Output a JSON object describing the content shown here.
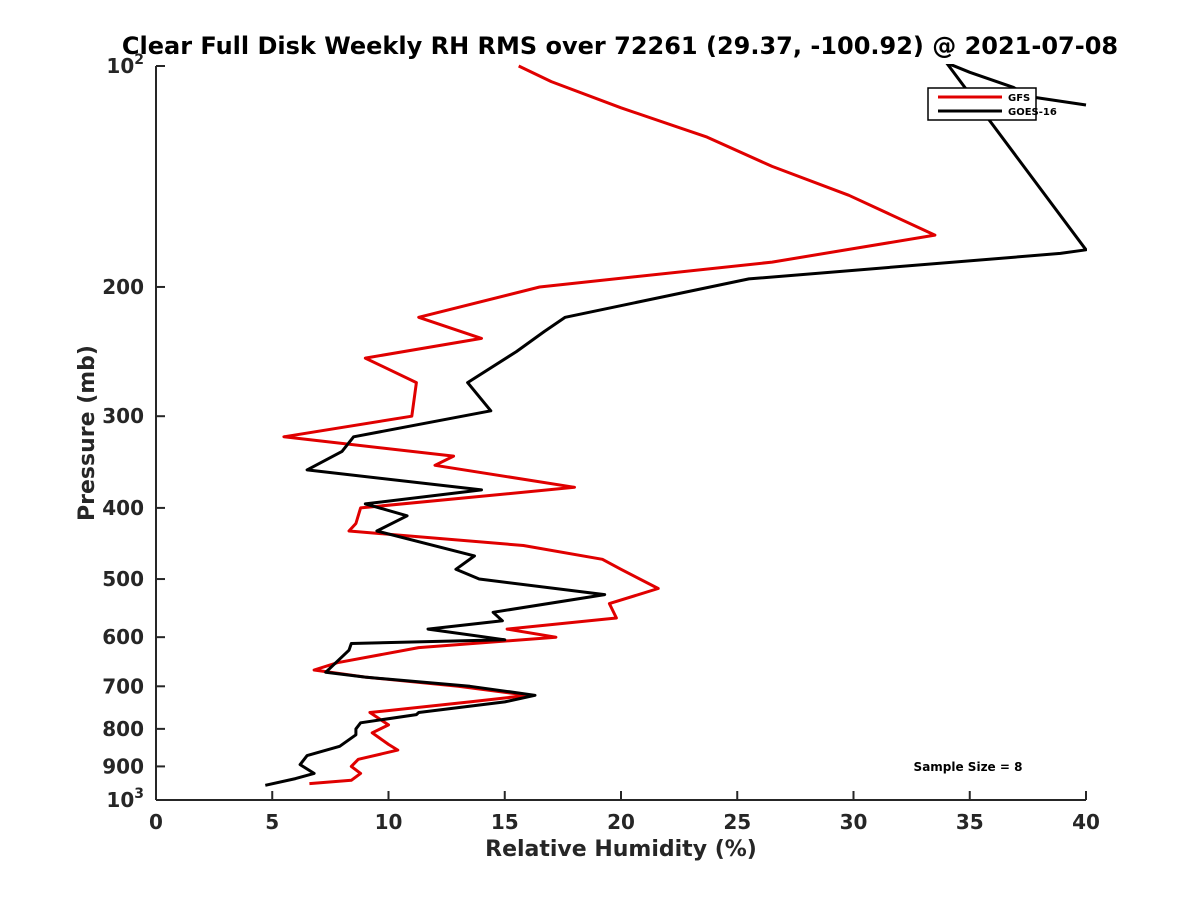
{
  "chart_data": {
    "type": "line",
    "title": "Clear Full Disk Weekly RH RMS over 72261 (29.37, -100.92) @ 2021-07-08",
    "xlabel": "Relative Humidity (%)",
    "ylabel": "Pressure (mb)",
    "xlim": [
      0,
      40
    ],
    "ylim": [
      100,
      1000
    ],
    "yscale": "log",
    "y_reversed": true,
    "x_ticks": [
      "0",
      "5",
      "10",
      "15",
      "20",
      "25",
      "30",
      "35",
      "40"
    ],
    "y_ticks": [
      {
        "value": 100,
        "base": "10",
        "exp": "2"
      },
      {
        "value": 200,
        "label": "200"
      },
      {
        "value": 300,
        "label": "300"
      },
      {
        "value": 400,
        "label": "400"
      },
      {
        "value": 500,
        "label": "500"
      },
      {
        "value": 600,
        "label": "600"
      },
      {
        "value": 700,
        "label": "700"
      },
      {
        "value": 800,
        "label": "800"
      },
      {
        "value": 900,
        "label": "900"
      },
      {
        "value": 1000,
        "base": "10",
        "exp": "3"
      }
    ],
    "legend_position": "top-right",
    "annotation": "Sample Size = 8",
    "series": [
      {
        "name": "GFS",
        "color": "#e00000",
        "points": [
          [
            15.6,
            100
          ],
          [
            17.0,
            105
          ],
          [
            20.0,
            114
          ],
          [
            23.7,
            125
          ],
          [
            26.5,
            137
          ],
          [
            29.8,
            150
          ],
          [
            33.5,
            170
          ],
          [
            26.5,
            185
          ],
          [
            16.5,
            200
          ],
          [
            11.3,
            220
          ],
          [
            14.0,
            235
          ],
          [
            9.0,
            250
          ],
          [
            11.2,
            270
          ],
          [
            11.0,
            300
          ],
          [
            5.5,
            320
          ],
          [
            12.8,
            340
          ],
          [
            12.0,
            350
          ],
          [
            18.0,
            375
          ],
          [
            8.8,
            400
          ],
          [
            8.6,
            420
          ],
          [
            8.3,
            430
          ],
          [
            15.8,
            450
          ],
          [
            19.2,
            470
          ],
          [
            20.0,
            485
          ],
          [
            21.6,
            515
          ],
          [
            19.5,
            540
          ],
          [
            19.8,
            565
          ],
          [
            15.1,
            585
          ],
          [
            17.2,
            600
          ],
          [
            11.3,
            620
          ],
          [
            7.8,
            650
          ],
          [
            6.8,
            665
          ],
          [
            9.0,
            680
          ],
          [
            13.0,
            700
          ],
          [
            16.0,
            720
          ],
          [
            13.5,
            735
          ],
          [
            9.2,
            760
          ],
          [
            10.0,
            790
          ],
          [
            9.3,
            810
          ],
          [
            10.0,
            840
          ],
          [
            10.4,
            855
          ],
          [
            8.7,
            880
          ],
          [
            8.4,
            900
          ],
          [
            8.8,
            920
          ],
          [
            8.4,
            940
          ],
          [
            6.6,
            950
          ]
        ]
      },
      {
        "name": "GOES-16",
        "color": "#000000",
        "points": [
          [
            40.0,
            113
          ],
          [
            37.5,
            110
          ],
          [
            36.9,
            107
          ],
          [
            35.0,
            102
          ],
          [
            34.0,
            99
          ],
          [
            40.0,
            178
          ],
          [
            38.9,
            180
          ],
          [
            25.5,
            195
          ],
          [
            17.6,
            220
          ],
          [
            16.7,
            230
          ],
          [
            15.5,
            245
          ],
          [
            13.4,
            270
          ],
          [
            14.4,
            295
          ],
          [
            8.5,
            320
          ],
          [
            8.0,
            335
          ],
          [
            6.5,
            355
          ],
          [
            14.0,
            378
          ],
          [
            9.0,
            395
          ],
          [
            10.8,
            410
          ],
          [
            9.5,
            430
          ],
          [
            13.7,
            465
          ],
          [
            12.9,
            485
          ],
          [
            13.9,
            500
          ],
          [
            19.3,
            525
          ],
          [
            14.5,
            555
          ],
          [
            14.9,
            570
          ],
          [
            11.7,
            585
          ],
          [
            15.0,
            605
          ],
          [
            8.4,
            612
          ],
          [
            8.3,
            625
          ],
          [
            7.3,
            670
          ],
          [
            9.0,
            680
          ],
          [
            13.5,
            700
          ],
          [
            16.3,
            720
          ],
          [
            15.0,
            735
          ],
          [
            11.3,
            760
          ],
          [
            11.2,
            765
          ],
          [
            8.8,
            785
          ],
          [
            8.6,
            800
          ],
          [
            8.6,
            815
          ],
          [
            7.9,
            845
          ],
          [
            6.5,
            870
          ],
          [
            6.2,
            895
          ],
          [
            6.8,
            920
          ],
          [
            6.0,
            935
          ],
          [
            4.7,
            955
          ]
        ]
      }
    ]
  }
}
